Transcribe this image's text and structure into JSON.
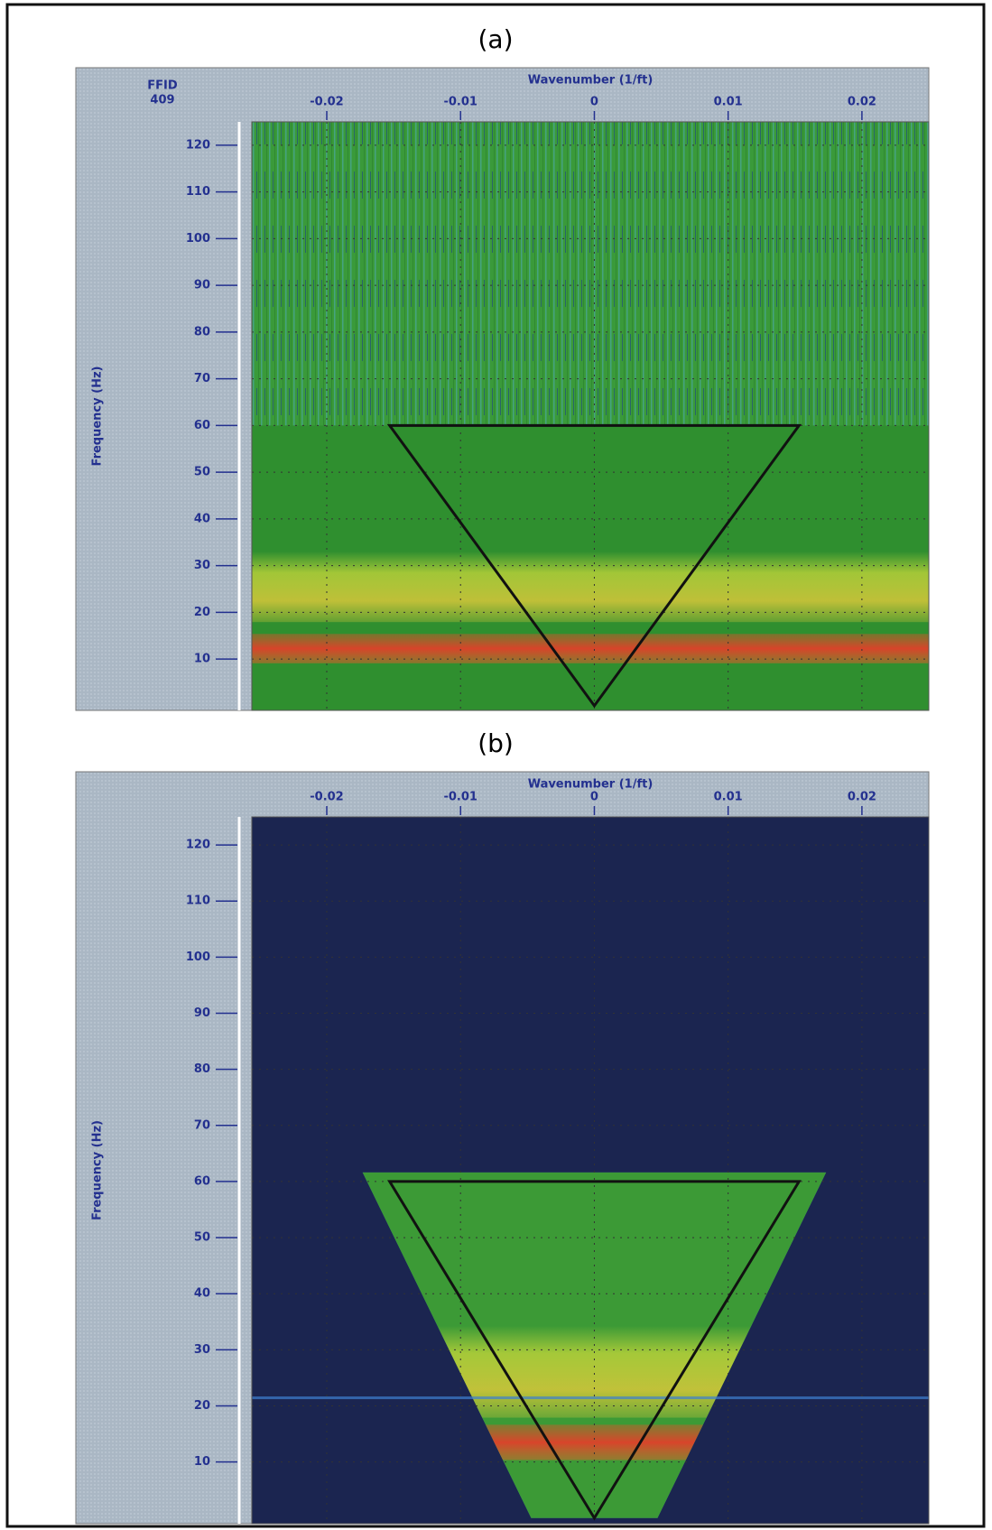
{
  "chart_data": [
    {
      "type": "heatmap",
      "title": "(a)",
      "header_label": "FFID",
      "header_value": "409",
      "xlabel": "Wavenumber (1/ft)",
      "ylabel": "Frequency (Hz)",
      "xlim": [
        -0.0256,
        0.025
      ],
      "ylim": [
        -1,
        125
      ],
      "xticks": [
        -0.02,
        -0.01,
        0,
        0.01,
        0.02
      ],
      "yticks": [
        10,
        20,
        30,
        40,
        50,
        60,
        70,
        80,
        90,
        100,
        110,
        120
      ],
      "grid": true,
      "background_color": "#2f8f2f",
      "polygon": {
        "x": [
          -0.0153,
          0.0153,
          0
        ],
        "y": [
          60,
          60,
          0
        ],
        "color": "#111111"
      }
    },
    {
      "type": "heatmap",
      "title": "(b)",
      "xlabel": "Wavenumber (1/ft)",
      "ylabel": "Frequency (Hz)",
      "xlim": [
        -0.0256,
        0.025
      ],
      "ylim": [
        -1,
        125
      ],
      "xticks": [
        -0.02,
        -0.01,
        0,
        0.01,
        0.02
      ],
      "yticks": [
        10,
        20,
        30,
        40,
        50,
        60,
        70,
        80,
        90,
        100,
        110,
        120
      ],
      "grid": true,
      "background_color": "#1b2550",
      "polygon": {
        "x": [
          -0.0153,
          0.0153,
          0
        ],
        "y": [
          60,
          60,
          0
        ],
        "color": "#111111"
      }
    }
  ]
}
